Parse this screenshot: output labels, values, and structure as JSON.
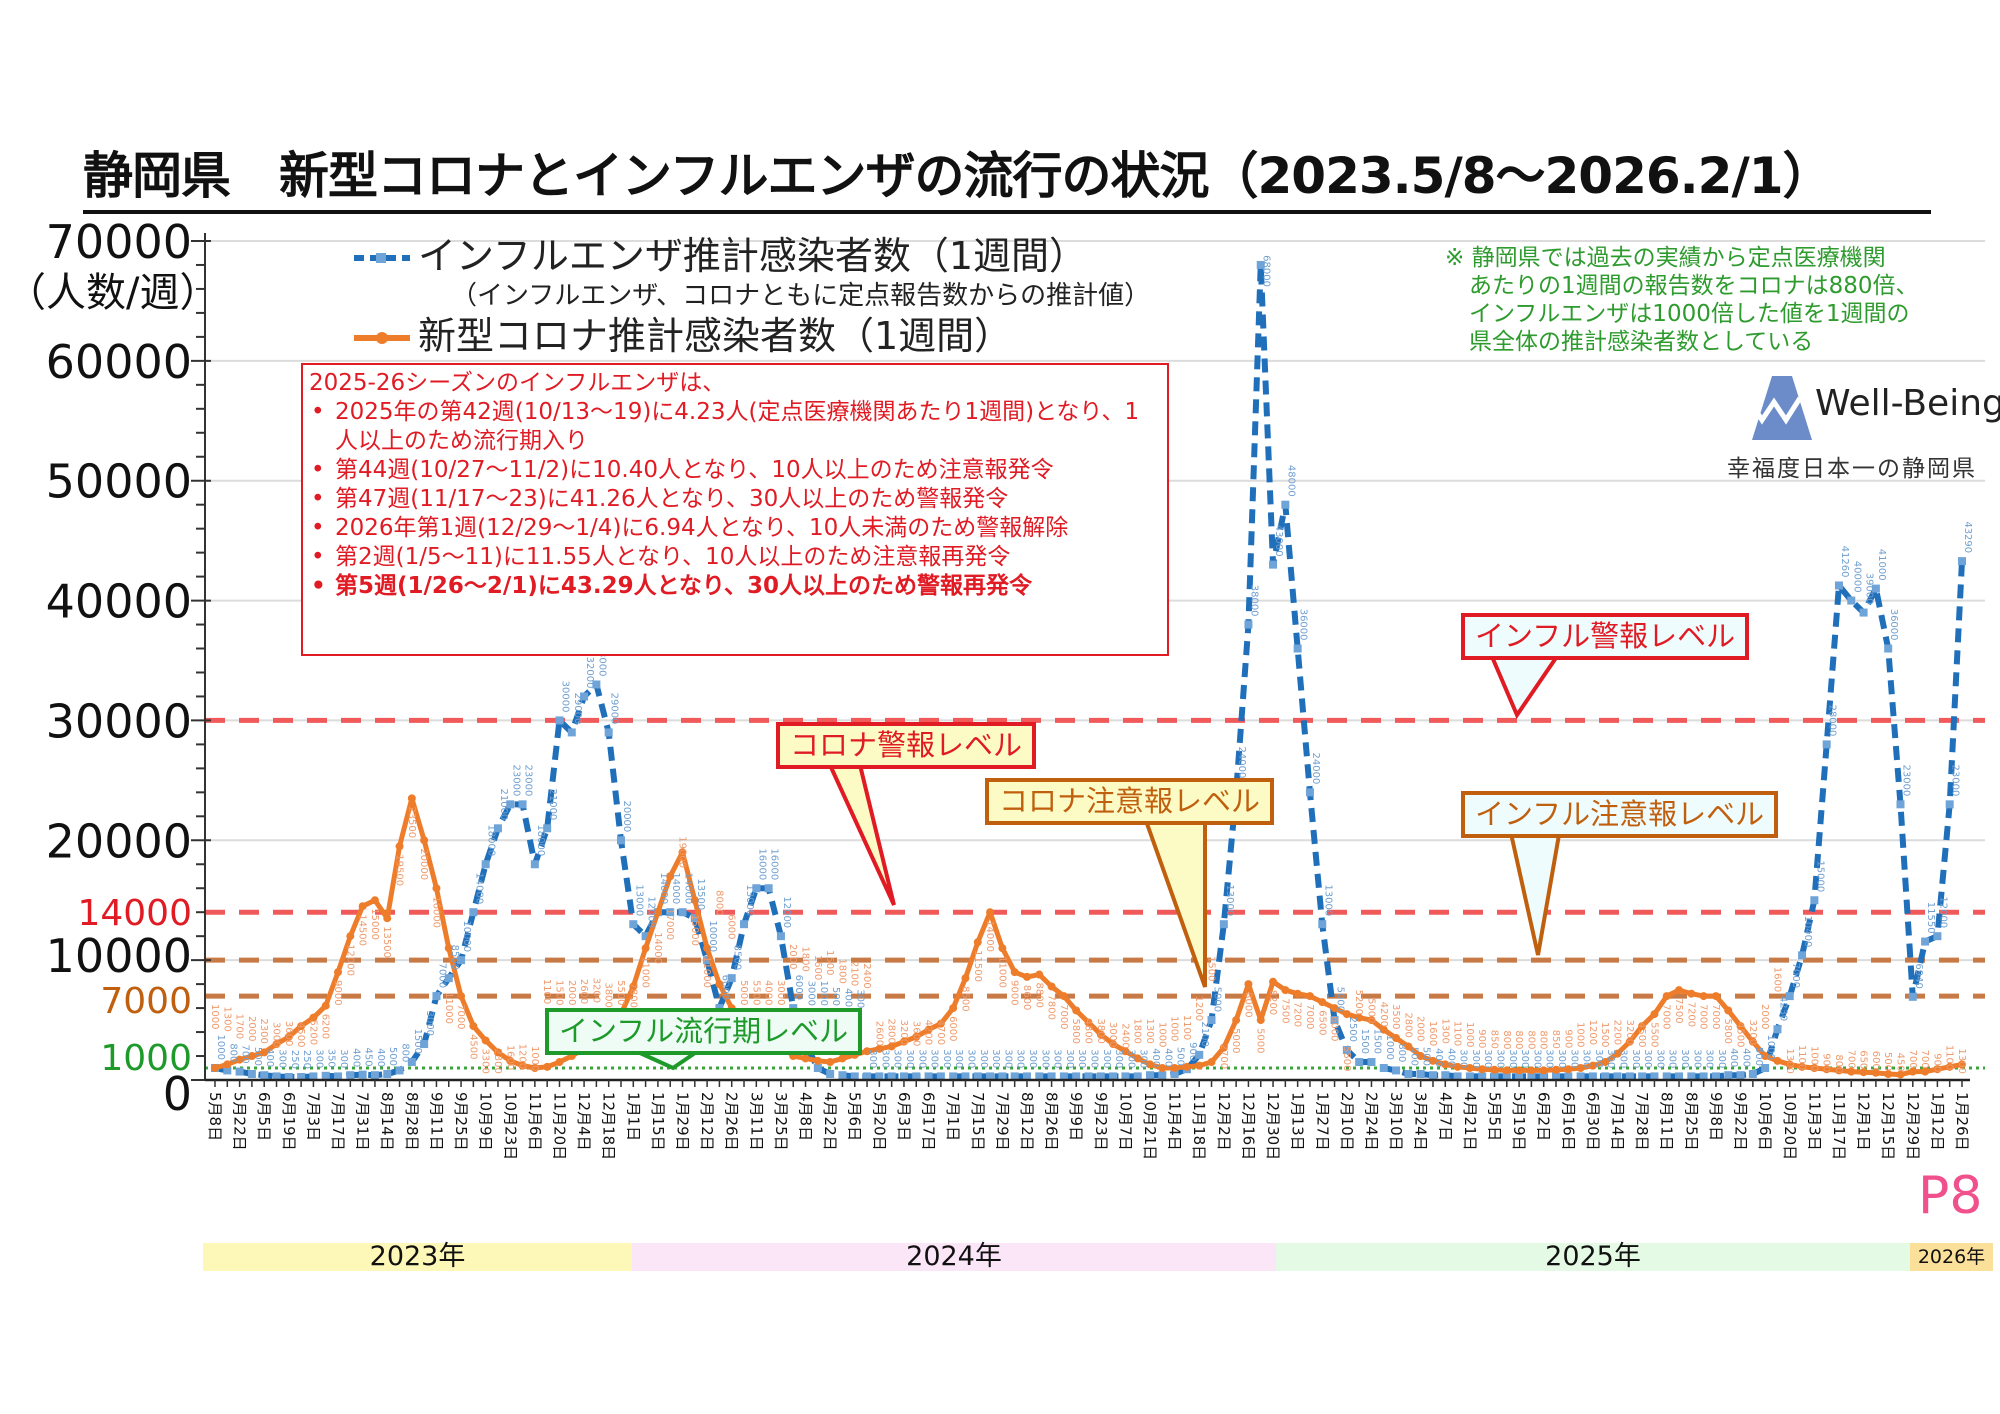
{
  "title": "静岡県　新型コロナとインフルエンザの流行の状況（2023.5/8～2026.2/1）",
  "y_unit": "（人数/週）",
  "legend": {
    "flu": "インフルエンザ推計感染者数（1週間）",
    "note": "（インフルエンザ、コロナともに定点報告数からの推計値）",
    "covid": "新型コロナ推計感染者数（1週間）"
  },
  "note_lines": [
    "※ 静岡県では過去の実績から定点医療機関",
    "あたりの1週間の報告数をコロナは880倍、",
    "インフルエンザは1000倍した値を1週間の",
    "県全体の推計感染者数としている"
  ],
  "infobox": {
    "heading": "2025-26シーズンのインフルエンザは、",
    "items": [
      "2025年の第42週(10/13～19)に4.23人(定点医療機関あたり1週間)となり、1人以上のため流行期入り",
      "第44週(10/27～11/2)に10.40人となり、10人以上のため注意報発令",
      "第47週(11/17～23)に41.26人となり、30人以上のため警報発令",
      "2026年第1週(12/29～1/4)に6.94人となり、10人未満のため警報解除",
      "第2週(1/5～11)に11.55人となり、10人以上のため注意報再発令",
      "第5週(1/26～2/1)に43.29人となり、30人以上のため警報再発令"
    ]
  },
  "callouts": {
    "flu_alarm": "インフル警報レベル",
    "covid_alarm": "コロナ警報レベル",
    "covid_caution": "コロナ注意報レベル",
    "flu_caution": "インフル注意報レベル",
    "flu_epidemic": "インフル流行期レベル"
  },
  "logo": {
    "text": "Well-Being",
    "subtitle": "幸福度日本一の静岡県",
    "color": "#6b8cc9"
  },
  "page_number": "P8",
  "years": [
    "2023年",
    "2024年",
    "2025年",
    "2026年"
  ],
  "year_colors": [
    "#fdf7b8",
    "#fbe6f7",
    "#e5fae5",
    "#fbe09a"
  ],
  "chart_data": {
    "type": "line",
    "ylim": [
      0,
      70000
    ],
    "y_ticks": [
      0,
      10000,
      20000,
      30000,
      40000,
      50000,
      60000,
      70000
    ],
    "threshold_labels": [
      {
        "value": 14000,
        "label": "14000",
        "color": "#e01b24"
      },
      {
        "value": 7000,
        "label": "7000",
        "color": "#c0600f"
      },
      {
        "value": 1000,
        "label": "1000",
        "color": "#1d9a2a"
      }
    ],
    "reference_lines": [
      {
        "value": 30000,
        "color": "#f05a5a",
        "style": "dashed"
      },
      {
        "value": 14000,
        "color": "#f05a5a",
        "style": "dashed"
      },
      {
        "value": 10000,
        "color": "#c77a45",
        "style": "dashed"
      },
      {
        "value": 7000,
        "color": "#c77a45",
        "style": "dashed"
      },
      {
        "value": 1000,
        "color": "#3aa63a",
        "style": "dotted"
      }
    ],
    "x_start": "2023-05-08",
    "x_interval": "weekly",
    "x_tick_labels": [
      "5月8日",
      "5月22日",
      "6月5日",
      "6月19日",
      "7月3日",
      "7月17日",
      "7月31日",
      "8月14日",
      "8月28日",
      "9月11日",
      "9月25日",
      "10月9日",
      "10月23日",
      "11月6日",
      "11月20日",
      "12月4日",
      "12月18日",
      "1月1日",
      "1月15日",
      "1月29日",
      "2月12日",
      "2月26日",
      "3月11日",
      "3月25日",
      "4月8日",
      "4月22日",
      "5月6日",
      "5月20日",
      "6月3日",
      "6月17日",
      "7月1日",
      "7月15日",
      "7月29日",
      "8月12日",
      "8月26日",
      "9月9日",
      "9月23日",
      "10月7日",
      "10月21日",
      "11月4日",
      "11月18日",
      "12月2日",
      "12月16日",
      "12月30日",
      "1月13日",
      "1月27日",
      "2月10日",
      "2月24日",
      "3月10日",
      "3月24日",
      "4月7日",
      "4月21日",
      "5月5日",
      "5月19日",
      "6月2日",
      "6月16日",
      "6月30日",
      "7月14日",
      "7月28日",
      "8月11日",
      "8月25日",
      "9月8日",
      "9月22日",
      "10月6日",
      "10月20日",
      "11月3日",
      "11月17日",
      "12月1日",
      "12月15日",
      "12月29日",
      "1月12日",
      "1月26日"
    ],
    "series": [
      {
        "name": "インフルエンザ推計感染者数（1週間）",
        "color": "#1f6fba",
        "values": [
          1000,
          800,
          700,
          500,
          400,
          300,
          250,
          250,
          300,
          350,
          300,
          400,
          450,
          400,
          500,
          800,
          1500,
          3000,
          7000,
          8500,
          10000,
          14000,
          18000,
          21000,
          23000,
          23000,
          18000,
          21000,
          30000,
          29000,
          32000,
          33000,
          29000,
          20000,
          13000,
          12000,
          14000,
          14000,
          14000,
          13500,
          10000,
          6000,
          8500,
          13000,
          16000,
          16000,
          12000,
          6000,
          3000,
          1000,
          500,
          400,
          300,
          300,
          300,
          300,
          300,
          300,
          300,
          300,
          300,
          300,
          300,
          300,
          300,
          300,
          300,
          300,
          300,
          300,
          300,
          300,
          300,
          300,
          300,
          300,
          400,
          400,
          500,
          900,
          2100,
          5000,
          13000,
          24000,
          38000,
          68000,
          43000,
          48000,
          36000,
          24000,
          13000,
          5000,
          2500,
          1500,
          1500,
          1000,
          800,
          500,
          500,
          400,
          400,
          300,
          300,
          300,
          300,
          300,
          300,
          300,
          300,
          300,
          300,
          300,
          300,
          300,
          300,
          300,
          300,
          300,
          300,
          300,
          300,
          300,
          300,
          400,
          400,
          500,
          1000,
          4230,
          7000,
          10400,
          15000,
          28000,
          41260,
          40000,
          39000,
          41000,
          36000,
          23000,
          6940,
          11550,
          12000,
          23000,
          43290
        ]
      },
      {
        "name": "新型コロナ推計感染者数（1週間）",
        "color": "#ee7d2b",
        "values": [
          1000,
          1300,
          1700,
          2000,
          2300,
          3000,
          3600,
          4500,
          5200,
          6200,
          9000,
          12000,
          14500,
          15000,
          13500,
          19500,
          23500,
          20000,
          16000,
          11000,
          7000,
          4500,
          3300,
          2300,
          1600,
          1200,
          1000,
          1100,
          1500,
          2000,
          2600,
          3200,
          3800,
          5500,
          7800,
          11000,
          14000,
          17000,
          19000,
          15000,
          11000,
          8000,
          6000,
          5000,
          5500,
          4000,
          3000,
          2000,
          1800,
          1600,
          1500,
          1800,
          2100,
          2400,
          2600,
          2800,
          3200,
          3600,
          4200,
          4700,
          6000,
          8500,
          11500,
          14000,
          11000,
          9000,
          8600,
          8800,
          7800,
          7000,
          5800,
          4800,
          3800,
          3000,
          2400,
          1800,
          1300,
          1000,
          1000,
          1100,
          1200,
          1500,
          2700,
          5000,
          8000,
          5000,
          8200,
          7500,
          7200,
          7000,
          6500,
          6000,
          5500,
          5200,
          5000,
          4200,
          3500,
          2800,
          2000,
          1600,
          1300,
          1100,
          1000,
          900,
          850,
          800,
          800,
          800,
          800,
          850,
          900,
          1000,
          1200,
          1500,
          2200,
          3200,
          4500,
          5500,
          7000,
          7500,
          7200,
          7000,
          7000,
          5800,
          4500,
          3200,
          2000,
          1600,
          1300,
          1100,
          1000,
          900,
          800,
          700,
          650,
          600,
          500,
          450,
          700,
          700,
          900,
          1100,
          1300
        ]
      }
    ]
  }
}
